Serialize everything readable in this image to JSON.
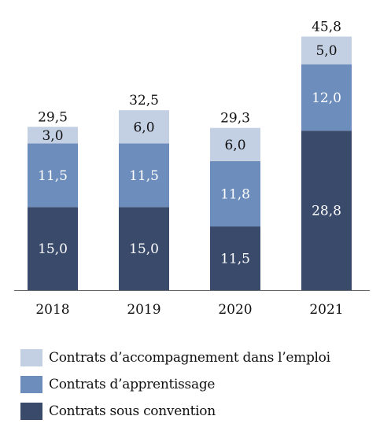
{
  "chart_data": {
    "type": "bar",
    "stacked": true,
    "categories": [
      "2018",
      "2019",
      "2020",
      "2021"
    ],
    "series": [
      {
        "name": "Contrats sous convention",
        "color": "#3a4a6b",
        "values": [
          15.0,
          15.0,
          11.5,
          28.8
        ],
        "labels": [
          "15,0",
          "15,0",
          "11,5",
          "28,8"
        ],
        "label_color": "#ffffff"
      },
      {
        "name": "Contrats d’apprentissage",
        "color": "#6d8dbc",
        "values": [
          11.5,
          11.5,
          11.8,
          12.0
        ],
        "labels": [
          "11,5",
          "11,5",
          "11,8",
          "12,0"
        ],
        "label_color": "#ffffff"
      },
      {
        "name": "Contrats d’accompagnement dans l’emploi",
        "color": "#c3cfe2",
        "values": [
          3.0,
          6.0,
          6.0,
          5.0
        ],
        "labels": [
          "3,0",
          "6,0",
          "6,0",
          "5,0"
        ],
        "label_color": "#111111"
      }
    ],
    "totals": [
      29.5,
      32.5,
      29.3,
      45.8
    ],
    "total_labels": [
      "29,5",
      "32,5",
      "29,3",
      "45,8"
    ],
    "ylim": [
      0,
      48
    ],
    "grid": false,
    "legend_position": "bottom",
    "legend_order": [
      2,
      1,
      0
    ]
  }
}
